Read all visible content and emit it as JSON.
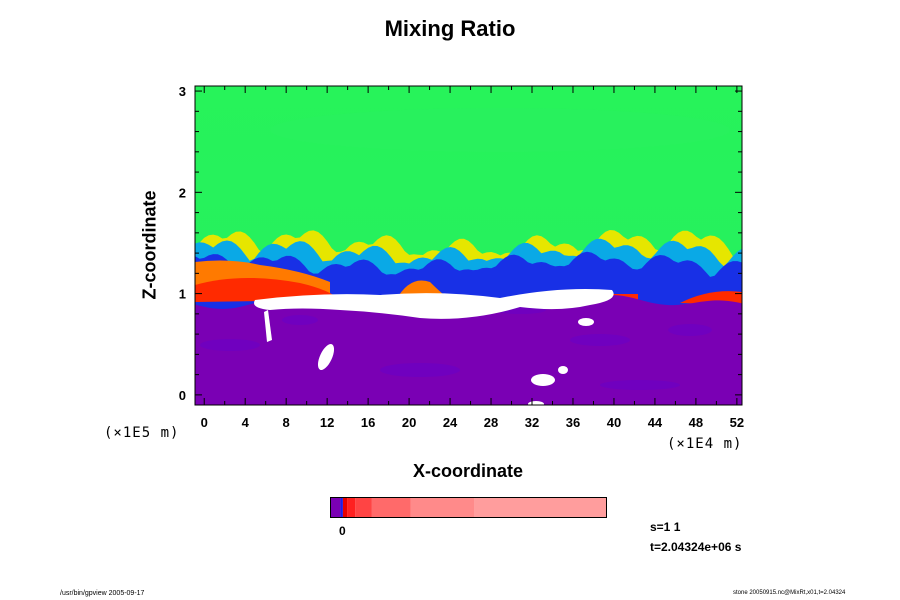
{
  "chart_data": {
    "type": "heatmap",
    "title": "Mixing Ratio",
    "xlabel": "X-coordinate",
    "ylabel": "Z-coordinate",
    "x_scale_label": "(×1E4 m)",
    "y_scale_label": "(×1E5 m)",
    "xlim": [
      -0.9,
      52.5
    ],
    "ylim": [
      -0.1,
      3.05
    ],
    "x_ticks": [
      "0",
      "4",
      "8",
      "12",
      "16",
      "20",
      "24",
      "28",
      "32",
      "36",
      "40",
      "44",
      "48",
      "52"
    ],
    "y_ticks": [
      "0",
      "1",
      "2",
      "3"
    ],
    "colorbar": {
      "tick_labels": [
        "0"
      ],
      "colors": [
        "#7a00b4",
        "#1e1ee6",
        "#e60000",
        "#ff2020",
        "#ff4444",
        "#ff6a6a",
        "#ff8a8a",
        "#ff9d9d"
      ],
      "proportions": [
        0.045,
        0.015,
        0.03,
        0.06,
        0.14,
        0.23,
        0.48
      ]
    },
    "colors": {
      "upper_layer": "#25f259",
      "lower_layer": "#7a00b4",
      "transition_blue": "#1830e6",
      "transition_cyan": "#0aa9e6",
      "transition_yellow": "#e6e600",
      "transition_orange": "#ff7a00",
      "transition_red": "#ff2a00",
      "masked": "#ffffff"
    }
  },
  "annotations": {
    "step": "s=1 1",
    "time": "t=2.04324e+06 s"
  },
  "footer": {
    "left": "/usr/bin/gpview 2005-09-17",
    "right": "stone 20050915.nc@MixRt,x01,t=2.04324"
  }
}
